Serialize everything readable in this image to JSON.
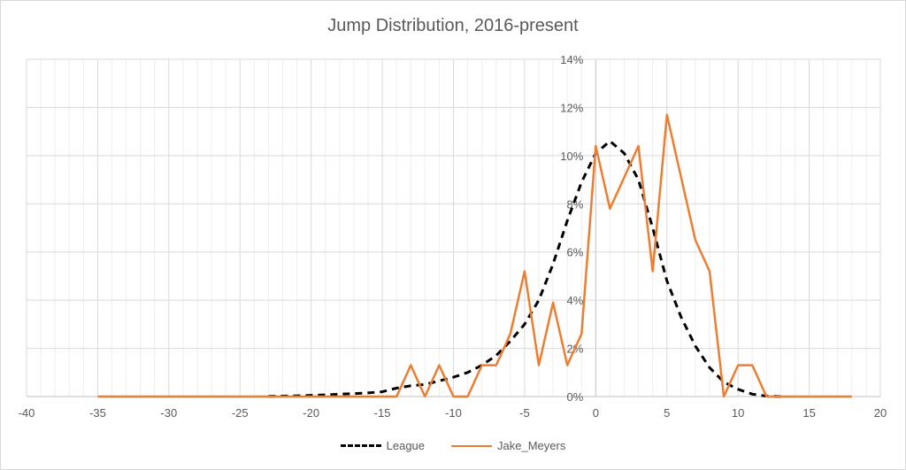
{
  "chart_data": {
    "type": "line",
    "title": "Jump Distribution, 2016-present",
    "xlabel": "",
    "ylabel": "",
    "xlim": [
      -40,
      20
    ],
    "ylim": [
      0,
      0.14
    ],
    "x_ticks": [
      "-40",
      "-35",
      "-30",
      "-25",
      "-20",
      "-15",
      "-10",
      "-5",
      "0",
      "5",
      "10",
      "15",
      "20"
    ],
    "y_ticks": [
      "0%",
      "2%",
      "4%",
      "6%",
      "8%",
      "10%",
      "12%",
      "14%"
    ],
    "grid": true,
    "legend_position": "bottom",
    "series": [
      {
        "name": "League",
        "color": "#000000",
        "style": "dashed",
        "x": [
          -23,
          -22,
          -21,
          -20,
          -19,
          -18,
          -17,
          -16,
          -15,
          -14,
          -13,
          -12,
          -11,
          -10,
          -9,
          -8,
          -7,
          -6,
          -5,
          -4,
          -3,
          -2,
          -1,
          0,
          1,
          2,
          3,
          4,
          5,
          6,
          7,
          8,
          9,
          10,
          11,
          12,
          13
        ],
        "y": [
          0.0001,
          0.0002,
          0.0003,
          0.0005,
          0.0007,
          0.001,
          0.0012,
          0.0015,
          0.002,
          0.0035,
          0.0045,
          0.005,
          0.0065,
          0.008,
          0.01,
          0.013,
          0.017,
          0.023,
          0.03,
          0.04,
          0.055,
          0.073,
          0.089,
          0.101,
          0.106,
          0.101,
          0.09,
          0.07,
          0.048,
          0.033,
          0.021,
          0.012,
          0.006,
          0.003,
          0.001,
          0.0002,
          0.0
        ]
      },
      {
        "name": "Jake_Meyers",
        "color": "#ED7D31",
        "style": "solid",
        "x": [
          -35,
          -34,
          -33,
          -32,
          -31,
          -30,
          -29,
          -28,
          -27,
          -26,
          -25,
          -24,
          -23,
          -22,
          -21,
          -20,
          -19,
          -18,
          -17,
          -16,
          -15,
          -14,
          -13,
          -12,
          -11,
          -10,
          -9,
          -8,
          -7,
          -6,
          -5,
          -4,
          -3,
          -2,
          -1,
          0,
          1,
          2,
          3,
          4,
          5,
          6,
          7,
          8,
          9,
          10,
          11,
          12,
          13,
          14,
          15,
          16,
          17,
          18
        ],
        "y": [
          0,
          0,
          0,
          0,
          0,
          0,
          0,
          0,
          0,
          0,
          0,
          0,
          0,
          0,
          0,
          0,
          0,
          0,
          0,
          0,
          0,
          0,
          0.013,
          0,
          0.013,
          0,
          0,
          0.013,
          0.013,
          0.026,
          0.052,
          0.013,
          0.039,
          0.013,
          0.026,
          0.104,
          0.078,
          0.091,
          0.104,
          0.052,
          0.117,
          0.091,
          0.065,
          0.052,
          0,
          0.013,
          0.013,
          0,
          0,
          0,
          0,
          0,
          0,
          0
        ]
      }
    ]
  }
}
